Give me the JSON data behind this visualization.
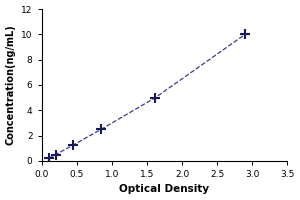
{
  "x_data": [
    0.1,
    0.2,
    0.45,
    0.85,
    1.62,
    2.9
  ],
  "y_data": [
    0.2,
    0.5,
    1.25,
    2.5,
    5.0,
    10.0
  ],
  "xlabel": "Optical Density",
  "ylabel": "Concentration(ng/mL)",
  "xlim": [
    0,
    3.5
  ],
  "ylim": [
    0,
    12
  ],
  "xticks": [
    0,
    0.5,
    1,
    1.5,
    2,
    2.5,
    3,
    3.5
  ],
  "yticks": [
    0,
    2,
    4,
    6,
    8,
    10,
    12
  ],
  "line_color": "#3a3a8a",
  "marker_color": "#1a1a5a",
  "line_style": "--",
  "marker_style": "+",
  "marker_size": 7,
  "marker_linewidth": 1.5,
  "line_width": 0.9,
  "xlabel_fontsize": 7.5,
  "ylabel_fontsize": 7,
  "tick_fontsize": 6.5,
  "bg_color": "#ffffff",
  "label_fontweight": "bold"
}
